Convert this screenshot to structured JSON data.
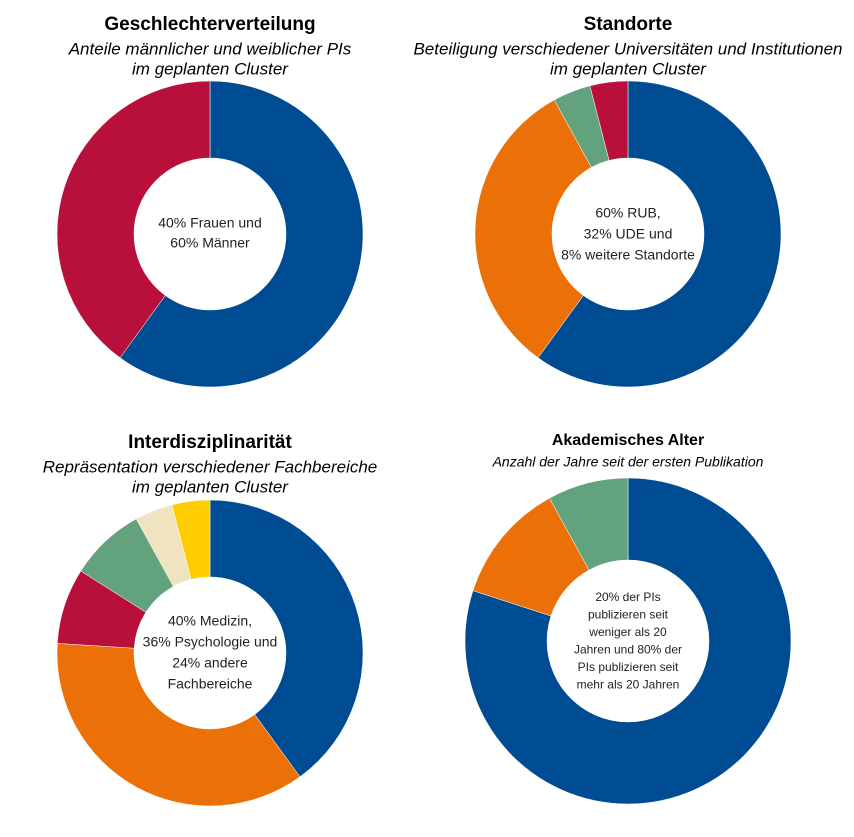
{
  "colors": {
    "blue": "#004c93",
    "red": "#b8103b",
    "orange": "#eb7008",
    "green": "#62a27c",
    "beige": "#efe3c0",
    "yellow": "#ffcc00"
  },
  "chart_data": [
    {
      "type": "pie",
      "title": "Geschlechterverteilung",
      "subtitle": [
        "Anteile männlicher und weiblicher PIs",
        "im geplanten Cluster"
      ],
      "center_text": [
        "40% Frauen und",
        "60% Männer"
      ],
      "slices": [
        {
          "label": "Männer",
          "value": 60,
          "color": "#004c93"
        },
        {
          "label": "Frauen",
          "value": 40,
          "color": "#b8103b"
        }
      ]
    },
    {
      "type": "pie",
      "title": "Standorte",
      "subtitle": [
        "Beteiligung verschiedener Universitäten und Institutionen",
        "im geplanten Cluster"
      ],
      "center_text": [
        "60% RUB,",
        "32% UDE und",
        "8% weitere Standorte"
      ],
      "slices": [
        {
          "label": "RUB",
          "value": 60,
          "color": "#004c93"
        },
        {
          "label": "UDE",
          "value": 32,
          "color": "#eb7008"
        },
        {
          "label": "weitere Standorte",
          "value": 4,
          "color": "#62a27c"
        },
        {
          "label": "weitere Standorte",
          "value": 4,
          "color": "#b8103b"
        }
      ]
    },
    {
      "type": "pie",
      "title": "Interdisziplinarität",
      "subtitle": [
        "Repräsentation verschiedener Fachbereiche",
        "im geplanten Cluster"
      ],
      "center_text": [
        "40% Medizin,",
        "36% Psychologie und",
        "24% andere",
        "Fachbereiche"
      ],
      "slices": [
        {
          "label": "Medizin",
          "value": 40,
          "color": "#004c93"
        },
        {
          "label": "Psychologie",
          "value": 36,
          "color": "#eb7008"
        },
        {
          "label": "andere Fachbereiche",
          "value": 8,
          "color": "#b8103b"
        },
        {
          "label": "andere Fachbereiche",
          "value": 8,
          "color": "#62a27c"
        },
        {
          "label": "andere Fachbereiche",
          "value": 4,
          "color": "#efe3c0"
        },
        {
          "label": "andere Fachbereiche",
          "value": 4,
          "color": "#ffcc00"
        }
      ]
    },
    {
      "type": "pie",
      "title": "Akademisches Alter",
      "subtitle": [
        "Anzahl der Jahre seit der ersten Publikation"
      ],
      "center_text": [
        "20% der PIs",
        "publizieren seit",
        "weniger als 20",
        "Jahren und 80% der",
        "PIs publizieren seit",
        "mehr als 20 Jahren"
      ],
      "slices": [
        {
          "label": "mehr als 20 Jahre",
          "value": 80,
          "color": "#004c93"
        },
        {
          "label": "weniger als 20 Jahre",
          "value": 12,
          "color": "#eb7008"
        },
        {
          "label": "weniger als 20 Jahre",
          "value": 8,
          "color": "#62a27c"
        }
      ]
    }
  ]
}
